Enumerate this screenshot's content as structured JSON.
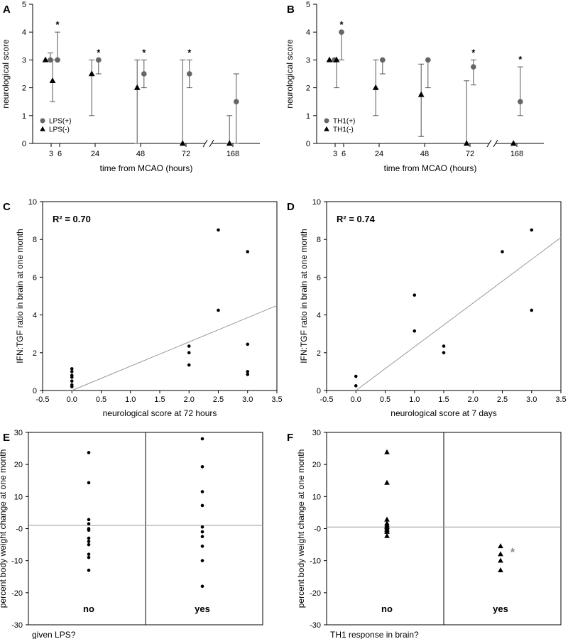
{
  "chart_data": [
    {
      "panel": "A",
      "type": "scatter",
      "xlabel": "time from MCAO (hours)",
      "ylabel": "neurological score",
      "ylim": [
        0,
        5
      ],
      "yticks": [
        0,
        1,
        2,
        3,
        4,
        5
      ],
      "xticks": [
        "3",
        "6",
        "24",
        "48",
        "72",
        "168"
      ],
      "axis_break": true,
      "legend_position": "bottom-left",
      "series": [
        {
          "name": "LPS(+)",
          "marker": "circle",
          "color": "#666666",
          "points": [
            {
              "x": "3",
              "y": 3,
              "low": 3,
              "high": 3.25
            },
            {
              "x": "6",
              "y": 3,
              "low": 3,
              "high": 4
            },
            {
              "x": "24",
              "y": 3,
              "low": 2.5,
              "high": 3
            },
            {
              "x": "48",
              "y": 2.5,
              "low": 2,
              "high": 3
            },
            {
              "x": "72",
              "y": 2.5,
              "low": 2,
              "high": 3
            },
            {
              "x": "168",
              "y": 1.5,
              "low": 0,
              "high": 2.5
            }
          ]
        },
        {
          "name": "LPS(-)",
          "marker": "triangle",
          "color": "#000000",
          "points": [
            {
              "x": "3",
              "y": 3,
              "low": 3,
              "high": 3
            },
            {
              "x": "6",
              "y": 2.25,
              "low": 1.5,
              "high": 3
            },
            {
              "x": "24",
              "y": 2.5,
              "low": 1,
              "high": 3
            },
            {
              "x": "48",
              "y": 2,
              "low": 0,
              "high": 3
            },
            {
              "x": "72",
              "y": 0,
              "low": 0,
              "high": 3
            },
            {
              "x": "168",
              "y": 0,
              "low": 0,
              "high": 1
            }
          ]
        }
      ],
      "significance": [
        "6",
        "24",
        "48",
        "72"
      ],
      "significance_symbol": "*"
    },
    {
      "panel": "B",
      "type": "scatter",
      "xlabel": "time from MCAO (hours)",
      "ylabel": "neurological score",
      "ylim": [
        0,
        5
      ],
      "yticks": [
        0,
        1,
        2,
        3,
        4,
        5
      ],
      "xticks": [
        "3",
        "6",
        "24",
        "48",
        "72",
        "168"
      ],
      "axis_break": true,
      "legend_position": "bottom-left",
      "series": [
        {
          "name": "TH1(+)",
          "marker": "circle",
          "color": "#666666",
          "points": [
            {
              "x": "3",
              "y": 3,
              "low": 3,
              "high": 3
            },
            {
              "x": "6",
              "y": 4,
              "low": 3,
              "high": 4
            },
            {
              "x": "24",
              "y": 3,
              "low": 2.5,
              "high": 3
            },
            {
              "x": "48",
              "y": 3,
              "low": 2,
              "high": 3
            },
            {
              "x": "72",
              "y": 2.75,
              "low": 2.1,
              "high": 3
            },
            {
              "x": "168",
              "y": 1.5,
              "low": 1,
              "high": 2.75
            }
          ]
        },
        {
          "name": "TH1(-)",
          "marker": "triangle",
          "color": "#000000",
          "points": [
            {
              "x": "3",
              "y": 3,
              "low": 3,
              "high": 3
            },
            {
              "x": "6",
              "y": 3,
              "low": 2,
              "high": 3
            },
            {
              "x": "24",
              "y": 2,
              "low": 1,
              "high": 3
            },
            {
              "x": "48",
              "y": 1.75,
              "low": 0.25,
              "high": 2.85
            },
            {
              "x": "72",
              "y": 0,
              "low": 0,
              "high": 2.25
            },
            {
              "x": "168",
              "y": 0,
              "low": 0,
              "high": 0
            }
          ]
        }
      ],
      "significance": [
        "6",
        "72",
        "168"
      ],
      "significance_symbol": "*"
    },
    {
      "panel": "C",
      "type": "scatter",
      "xlabel": "neurological score at 72 hours",
      "ylabel": "IFN:TGF ratio in brain at one month",
      "xlim": [
        -0.5,
        3.5
      ],
      "ylim": [
        0,
        10
      ],
      "xticks": [
        -0.5,
        0.0,
        0.5,
        1.0,
        1.5,
        2.0,
        2.5,
        3.0,
        3.5
      ],
      "yticks": [
        0,
        2,
        4,
        6,
        8,
        10
      ],
      "annotation": "R² = 0.70",
      "points": [
        [
          0,
          0.2
        ],
        [
          0,
          0.3
        ],
        [
          0,
          0.5
        ],
        [
          0,
          0.7
        ],
        [
          0,
          0.8
        ],
        [
          0,
          1.0
        ],
        [
          0,
          1.15
        ],
        [
          2,
          1.35
        ],
        [
          2,
          2.0
        ],
        [
          2,
          2.35
        ],
        [
          2.5,
          4.25
        ],
        [
          2.5,
          8.5
        ],
        [
          3,
          0.85
        ],
        [
          3,
          1.0
        ],
        [
          3,
          2.45
        ],
        [
          3,
          7.35
        ]
      ],
      "fit_line": [
        [
          0,
          0
        ],
        [
          3.5,
          4.5
        ]
      ]
    },
    {
      "panel": "D",
      "type": "scatter",
      "xlabel": "neurological score at 7 days",
      "ylabel": "IFN:TGF ratio in brain at one month",
      "xlim": [
        -0.5,
        3.5
      ],
      "ylim": [
        0,
        10
      ],
      "xticks": [
        -0.5,
        0.0,
        0.5,
        1.0,
        1.5,
        2.0,
        2.5,
        3.0,
        3.5
      ],
      "yticks": [
        0,
        2,
        4,
        6,
        8,
        10
      ],
      "annotation": "R² = 0.74",
      "points": [
        [
          0,
          0.25
        ],
        [
          0,
          0.75
        ],
        [
          1,
          3.15
        ],
        [
          1,
          5.05
        ],
        [
          1.5,
          2.0
        ],
        [
          1.5,
          2.35
        ],
        [
          2.5,
          7.35
        ],
        [
          3,
          4.25
        ],
        [
          3,
          8.5
        ]
      ],
      "fit_line": [
        [
          0,
          0
        ],
        [
          3.5,
          8.1
        ]
      ]
    },
    {
      "panel": "E",
      "type": "scatter",
      "xlabel": "given LPS?",
      "ylabel": "percent body weight change at one month",
      "ylim": [
        -30,
        30
      ],
      "yticks": [
        30,
        20,
        10,
        0,
        -10,
        -20,
        -30
      ],
      "ytick_labels": [
        "30",
        "20",
        "10",
        "-0",
        "-10",
        "-20",
        "-30"
      ],
      "categories": [
        "no",
        "yes"
      ],
      "reference_line": 1,
      "marker": "circle",
      "series": [
        {
          "category": "no",
          "values": [
            23.7,
            14.3,
            2.8,
            1.5,
            0,
            -0.5,
            -3.0,
            -4.0,
            -5.0,
            -8.0,
            -9.0,
            -13.0
          ]
        },
        {
          "category": "yes",
          "values": [
            28.0,
            19.3,
            11.5,
            7.2,
            0.5,
            -1.0,
            -2.5,
            -5.5,
            -10.0,
            -18.0
          ]
        }
      ]
    },
    {
      "panel": "F",
      "type": "scatter",
      "xlabel": "TH1 response in brain?",
      "ylabel": "percent body weight change at one month",
      "ylim": [
        -30,
        30
      ],
      "yticks": [
        30,
        20,
        10,
        0,
        -10,
        -20,
        -30
      ],
      "ytick_labels": [
        "30",
        "20",
        "10",
        "-0",
        "-10",
        "-20",
        "-30"
      ],
      "categories": [
        "no",
        "yes"
      ],
      "reference_line": 0.5,
      "marker": "triangle",
      "series": [
        {
          "category": "no",
          "values": [
            23.8,
            14.3,
            2.8,
            1.6,
            1.0,
            0.5,
            0,
            -0.5,
            -1.0,
            -2.3
          ]
        },
        {
          "category": "yes",
          "values": [
            -5.5,
            -8.0,
            -10.0,
            -13.0
          ]
        }
      ],
      "significance": "yes",
      "significance_symbol": "*",
      "significance_color": "#888888"
    }
  ]
}
